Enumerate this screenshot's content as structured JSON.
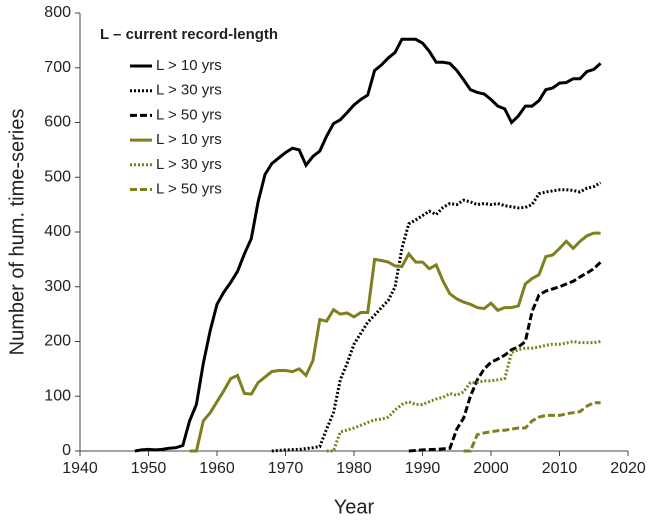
{
  "chart_data": {
    "type": "line",
    "x_label": "Year",
    "y_label": "Number of hum. time-series",
    "legend_title": "L – current record-length",
    "legend_loc": "upper left",
    "xlim": [
      1940,
      2020
    ],
    "xticks": [
      1940,
      1950,
      1960,
      1970,
      1980,
      1990,
      2000,
      2010,
      2020
    ],
    "ylim": [
      0,
      800
    ],
    "yticks": [
      0,
      100,
      200,
      300,
      400,
      500,
      600,
      700,
      800
    ],
    "series": [
      {
        "name": "L > 10 yrs",
        "color": "#000000",
        "style": "solid",
        "x": [
          1948,
          1949,
          1950,
          1951,
          1952,
          1953,
          1954,
          1955,
          1956,
          1957,
          1958,
          1959,
          1960,
          1961,
          1962,
          1963,
          1964,
          1965,
          1966,
          1967,
          1968,
          1969,
          1970,
          1971,
          1972,
          1973,
          1974,
          1975,
          1976,
          1977,
          1978,
          1979,
          1980,
          1981,
          1982,
          1983,
          1984,
          1985,
          1986,
          1987,
          1988,
          1989,
          1990,
          1991,
          1992,
          1993,
          1994,
          1995,
          1996,
          1997,
          1998,
          1999,
          2000,
          2001,
          2002,
          2003,
          2004,
          2005,
          2006,
          2007,
          2008,
          2009,
          2010,
          2011,
          2012,
          2013,
          2014,
          2015,
          2016
        ],
        "values": [
          0,
          2,
          3,
          2,
          3,
          5,
          6,
          10,
          55,
          85,
          160,
          220,
          268,
          290,
          308,
          328,
          360,
          388,
          455,
          505,
          525,
          535,
          545,
          553,
          550,
          522,
          538,
          548,
          575,
          598,
          605,
          618,
          632,
          642,
          650,
          695,
          705,
          718,
          728,
          752,
          752,
          752,
          745,
          730,
          710,
          710,
          708,
          695,
          678,
          660,
          655,
          652,
          642,
          630,
          625,
          600,
          612,
          630,
          630,
          640,
          660,
          663,
          672,
          673,
          680,
          680,
          693,
          697,
          708
        ]
      },
      {
        "name": "L > 30 yrs",
        "color": "#000000",
        "style": "dotted",
        "x": [
          1968,
          1970,
          1972,
          1974,
          1975,
          1976,
          1977,
          1978,
          1979,
          1980,
          1981,
          1982,
          1983,
          1984,
          1985,
          1986,
          1987,
          1988,
          1989,
          1990,
          1991,
          1992,
          1993,
          1994,
          1995,
          1996,
          1997,
          1998,
          1999,
          2000,
          2001,
          2002,
          2003,
          2004,
          2005,
          2006,
          2007,
          2008,
          2009,
          2010,
          2011,
          2012,
          2013,
          2014,
          2015,
          2016
        ],
        "values": [
          0,
          2,
          3,
          6,
          8,
          40,
          70,
          130,
          160,
          195,
          215,
          235,
          248,
          262,
          275,
          300,
          370,
          415,
          422,
          430,
          438,
          432,
          445,
          452,
          450,
          458,
          455,
          450,
          452,
          450,
          452,
          448,
          446,
          444,
          445,
          450,
          470,
          473,
          475,
          477,
          477,
          476,
          473,
          480,
          483,
          490
        ]
      },
      {
        "name": "L > 50 yrs",
        "color": "#000000",
        "style": "dashed",
        "x": [
          1988,
          1990,
          1992,
          1994,
          1995,
          1996,
          1997,
          1998,
          1999,
          2000,
          2001,
          2002,
          2003,
          2004,
          2005,
          2006,
          2007,
          2008,
          2009,
          2010,
          2011,
          2012,
          2013,
          2014,
          2015,
          2016
        ],
        "values": [
          0,
          2,
          3,
          5,
          40,
          60,
          100,
          130,
          150,
          162,
          168,
          175,
          185,
          190,
          200,
          255,
          285,
          292,
          296,
          300,
          305,
          310,
          318,
          325,
          333,
          345
        ]
      },
      {
        "name": "L > 10 yrs",
        "color": "#7f7f1f",
        "style": "solid",
        "x": [
          1956,
          1957,
          1958,
          1959,
          1960,
          1961,
          1962,
          1963,
          1964,
          1965,
          1966,
          1967,
          1968,
          1969,
          1970,
          1971,
          1972,
          1973,
          1974,
          1975,
          1976,
          1977,
          1978,
          1979,
          1980,
          1981,
          1982,
          1983,
          1984,
          1985,
          1986,
          1987,
          1988,
          1989,
          1990,
          1991,
          1992,
          1993,
          1994,
          1995,
          1996,
          1997,
          1998,
          1999,
          2000,
          2001,
          2002,
          2003,
          2004,
          2005,
          2006,
          2007,
          2008,
          2009,
          2010,
          2011,
          2012,
          2013,
          2014,
          2015,
          2016
        ],
        "values": [
          0,
          0,
          55,
          70,
          90,
          110,
          132,
          138,
          105,
          104,
          125,
          135,
          145,
          147,
          147,
          145,
          150,
          138,
          165,
          240,
          237,
          258,
          250,
          252,
          245,
          253,
          253,
          350,
          348,
          345,
          338,
          337,
          360,
          345,
          345,
          333,
          340,
          310,
          287,
          278,
          272,
          268,
          262,
          260,
          270,
          257,
          262,
          262,
          265,
          305,
          315,
          322,
          355,
          358,
          370,
          383,
          370,
          383,
          393,
          398,
          398
        ]
      },
      {
        "name": "L > 30 yrs",
        "color": "#7f7f1f",
        "style": "dotted",
        "x": [
          1976,
          1977,
          1978,
          1979,
          1980,
          1981,
          1982,
          1983,
          1984,
          1985,
          1986,
          1987,
          1988,
          1989,
          1990,
          1991,
          1992,
          1993,
          1994,
          1995,
          1996,
          1997,
          1998,
          1999,
          2000,
          2001,
          2002,
          2003,
          2004,
          2005,
          2006,
          2007,
          2008,
          2009,
          2010,
          2011,
          2012,
          2013,
          2014,
          2015,
          2016
        ],
        "values": [
          0,
          0,
          35,
          38,
          42,
          47,
          52,
          57,
          58,
          62,
          75,
          85,
          90,
          85,
          85,
          90,
          95,
          98,
          105,
          102,
          108,
          125,
          125,
          128,
          128,
          130,
          132,
          180,
          185,
          188,
          188,
          190,
          193,
          195,
          195,
          197,
          200,
          198,
          198,
          198,
          200
        ]
      },
      {
        "name": "L > 50 yrs",
        "color": "#7f7f1f",
        "style": "dashed",
        "x": [
          1996,
          1997,
          1998,
          1999,
          2000,
          2001,
          2002,
          2003,
          2004,
          2005,
          2006,
          2007,
          2008,
          2009,
          2010,
          2011,
          2012,
          2013,
          2014,
          2015,
          2016
        ],
        "values": [
          0,
          0,
          30,
          33,
          35,
          37,
          38,
          40,
          42,
          42,
          55,
          62,
          65,
          65,
          65,
          68,
          70,
          72,
          82,
          88,
          88
        ]
      }
    ]
  }
}
